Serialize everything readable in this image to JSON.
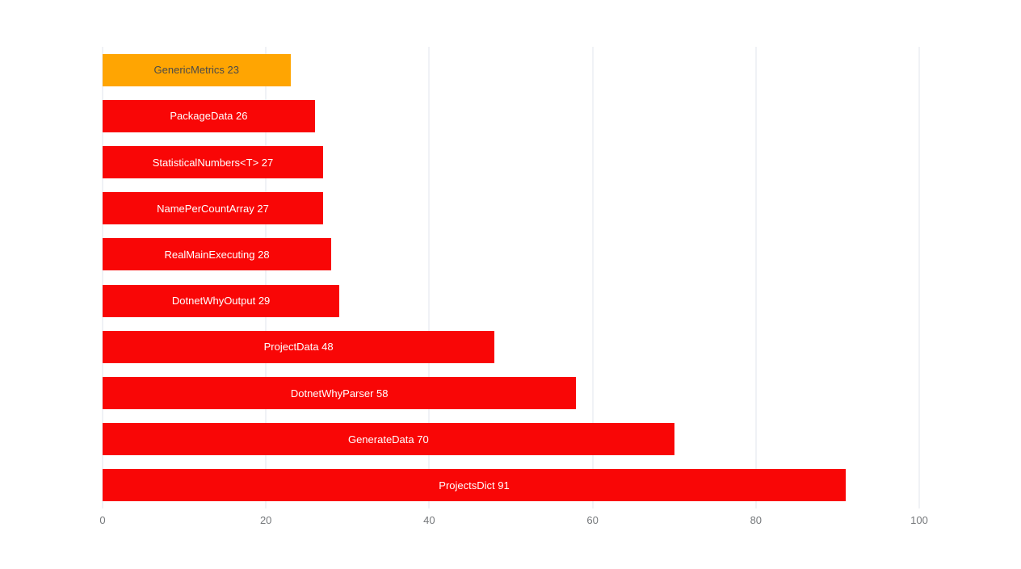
{
  "chart_data": {
    "type": "bar",
    "orientation": "horizontal",
    "title": "",
    "xlabel": "",
    "ylabel": "",
    "xlim": [
      0,
      100
    ],
    "x_ticks": [
      0,
      20,
      40,
      60,
      80,
      100
    ],
    "grid": "vertical-lines-on",
    "legend": "none",
    "categories": [
      "GenericMetrics",
      "PackageData",
      "StatisticalNumbers<T>",
      "NamePerCountArray",
      "RealMainExecuting",
      "DotnetWhyOutput",
      "ProjectData",
      "DotnetWhyParser",
      "GenerateData",
      "ProjectsDict"
    ],
    "values": [
      23,
      26,
      27,
      27,
      28,
      29,
      48,
      58,
      70,
      91
    ],
    "points": [
      {
        "name": "GenericMetrics",
        "value": 23,
        "label": "GenericMetrics 23",
        "bar_color": "#FFA502",
        "text_color": "#4A4A4A"
      },
      {
        "name": "PackageData",
        "value": 26,
        "label": "PackageData 26",
        "bar_color": "#F90606",
        "text_color": "#FFFFFF"
      },
      {
        "name": "StatisticalNumbers<T>",
        "value": 27,
        "label": "StatisticalNumbers<T> 27",
        "bar_color": "#F90606",
        "text_color": "#FFFFFF"
      },
      {
        "name": "NamePerCountArray",
        "value": 27,
        "label": "NamePerCountArray 27",
        "bar_color": "#F90606",
        "text_color": "#FFFFFF"
      },
      {
        "name": "RealMainExecuting",
        "value": 28,
        "label": "RealMainExecuting 28",
        "bar_color": "#F90606",
        "text_color": "#FFFFFF"
      },
      {
        "name": "DotnetWhyOutput",
        "value": 29,
        "label": "DotnetWhyOutput 29",
        "bar_color": "#F90606",
        "text_color": "#FFFFFF"
      },
      {
        "name": "ProjectData",
        "value": 48,
        "label": "ProjectData 48",
        "bar_color": "#F90606",
        "text_color": "#FFFFFF"
      },
      {
        "name": "DotnetWhyParser",
        "value": 58,
        "label": "DotnetWhyParser 58",
        "bar_color": "#F90606",
        "text_color": "#FFFFFF"
      },
      {
        "name": "GenerateData",
        "value": 70,
        "label": "GenerateData 70",
        "bar_color": "#F90606",
        "text_color": "#FFFFFF"
      },
      {
        "name": "ProjectsDict",
        "value": 91,
        "label": "ProjectsDict 91",
        "bar_color": "#F90606",
        "text_color": "#FFFFFF"
      }
    ],
    "colors": {
      "default_bar": "#F90606",
      "highlight_bar": "#FFA502",
      "grid": "#E2E5EC",
      "tick_label": "#75787B",
      "background": "#FFFFFF"
    }
  }
}
